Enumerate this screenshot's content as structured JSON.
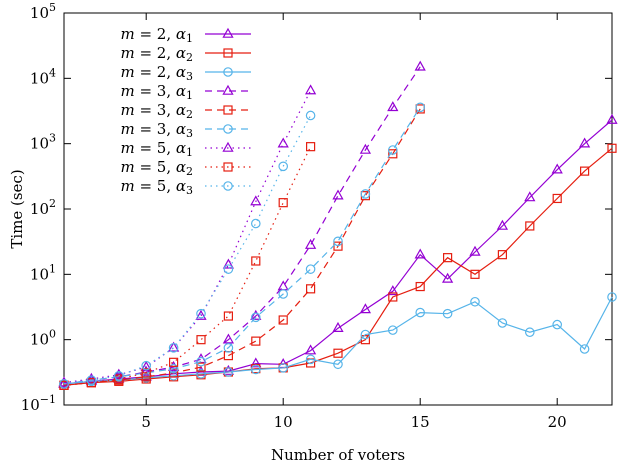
{
  "chart_data": {
    "type": "line",
    "xlabel": "Number of voters",
    "ylabel": "Time (sec)",
    "xlim": [
      2,
      22
    ],
    "ylim": [
      0.1,
      100000
    ],
    "yscale": "log",
    "grid": false,
    "legend_position": "top-left",
    "x_ticks": [
      {
        "value": 5,
        "label": "5"
      },
      {
        "value": 10,
        "label": "10"
      },
      {
        "value": 15,
        "label": "15"
      },
      {
        "value": 20,
        "label": "20"
      }
    ],
    "y_ticks": [
      {
        "value": 0.1,
        "base": "10",
        "exp": "−1"
      },
      {
        "value": 1,
        "base": "10",
        "exp": "0"
      },
      {
        "value": 10,
        "base": "10",
        "exp": "1"
      },
      {
        "value": 100,
        "base": "10",
        "exp": "2"
      },
      {
        "value": 1000,
        "base": "10",
        "exp": "3"
      },
      {
        "value": 10000,
        "base": "10",
        "exp": "4"
      },
      {
        "value": 100000,
        "base": "10",
        "exp": "5"
      }
    ],
    "series": [
      {
        "name": "m = 2, α1",
        "m": "2",
        "alpha_sub": "1",
        "color": "#9400d3",
        "marker": "triangle",
        "dash": "solid",
        "x": [
          2,
          3,
          4,
          5,
          6,
          7,
          8,
          9,
          10,
          11,
          12,
          13,
          14,
          15,
          16,
          17,
          18,
          19,
          20,
          21,
          22
        ],
        "y": [
          0.21,
          0.23,
          0.25,
          0.27,
          0.3,
          0.32,
          0.33,
          0.43,
          0.42,
          0.68,
          1.5,
          2.9,
          5.5,
          20,
          8.5,
          22,
          55,
          150,
          400,
          1000,
          2300
        ]
      },
      {
        "name": "m = 2, α2",
        "m": "2",
        "alpha_sub": "2",
        "color": "#e51e10",
        "marker": "square",
        "dash": "solid",
        "x": [
          2,
          3,
          4,
          5,
          6,
          7,
          8,
          9,
          10,
          11,
          12,
          13,
          14,
          15,
          16,
          17,
          18,
          19,
          20,
          21,
          22
        ],
        "y": [
          0.2,
          0.22,
          0.23,
          0.25,
          0.27,
          0.29,
          0.32,
          0.36,
          0.37,
          0.44,
          0.62,
          1.0,
          4.5,
          6.5,
          18,
          10,
          20,
          55,
          145,
          380,
          850
        ]
      },
      {
        "name": "m = 2, α3",
        "m": "2",
        "alpha_sub": "3",
        "color": "#56b4e9",
        "marker": "circle",
        "dash": "solid",
        "x": [
          2,
          3,
          4,
          5,
          6,
          7,
          8,
          9,
          10,
          11,
          12,
          13,
          14,
          15,
          16,
          17,
          18,
          19,
          20,
          21,
          22
        ],
        "y": [
          0.21,
          0.23,
          0.24,
          0.26,
          0.28,
          0.3,
          0.32,
          0.35,
          0.37,
          0.5,
          0.42,
          1.2,
          1.4,
          2.6,
          2.5,
          3.8,
          1.8,
          1.3,
          1.7,
          0.72,
          4.5
        ]
      },
      {
        "name": "m = 3, α1",
        "m": "3",
        "alpha_sub": "1",
        "color": "#9400d3",
        "marker": "triangle",
        "dash": "dashed",
        "x": [
          2,
          3,
          4,
          5,
          6,
          7,
          8,
          9,
          10,
          11,
          12,
          13,
          14,
          15
        ],
        "y": [
          0.21,
          0.24,
          0.27,
          0.32,
          0.38,
          0.5,
          1.0,
          2.3,
          6.5,
          28,
          160,
          800,
          3600,
          15000
        ]
      },
      {
        "name": "m = 3, α2",
        "m": "3",
        "alpha_sub": "2",
        "color": "#e51e10",
        "marker": "square",
        "dash": "dashed",
        "x": [
          2,
          3,
          4,
          5,
          6,
          7,
          8,
          9,
          10,
          11,
          12,
          13,
          14,
          15
        ],
        "y": [
          0.2,
          0.22,
          0.24,
          0.27,
          0.31,
          0.38,
          0.57,
          0.95,
          2.0,
          6.0,
          27,
          160,
          700,
          3400
        ]
      },
      {
        "name": "m = 3, α3",
        "m": "3",
        "alpha_sub": "3",
        "color": "#56b4e9",
        "marker": "circle",
        "dash": "dashed",
        "x": [
          2,
          3,
          4,
          5,
          6,
          7,
          8,
          9,
          10,
          11,
          12,
          13,
          14,
          15
        ],
        "y": [
          0.21,
          0.24,
          0.27,
          0.31,
          0.36,
          0.46,
          0.75,
          2.2,
          5.0,
          12,
          32,
          170,
          800,
          3600
        ]
      },
      {
        "name": "m = 5, α1",
        "m": "5",
        "alpha_sub": "1",
        "color": "#9400d3",
        "marker": "triangle",
        "dash": "dotted",
        "x": [
          2,
          3,
          4,
          5,
          6,
          7,
          8,
          9,
          10,
          11
        ],
        "y": [
          0.22,
          0.25,
          0.29,
          0.38,
          0.75,
          2.3,
          14,
          130,
          1000,
          6500
        ]
      },
      {
        "name": "m = 5, α2",
        "m": "5",
        "alpha_sub": "2",
        "color": "#e51e10",
        "marker": "square",
        "dash": "dotted",
        "x": [
          2,
          3,
          4,
          5,
          6,
          7,
          8,
          9,
          10,
          11
        ],
        "y": [
          0.2,
          0.22,
          0.25,
          0.31,
          0.45,
          1.0,
          2.3,
          16,
          125,
          900
        ]
      },
      {
        "name": "m = 5, α3",
        "m": "5",
        "alpha_sub": "3",
        "color": "#56b4e9",
        "marker": "circle",
        "dash": "dotted",
        "x": [
          2,
          3,
          4,
          5,
          6,
          7,
          8,
          9,
          10,
          11
        ],
        "y": [
          0.21,
          0.24,
          0.28,
          0.4,
          0.75,
          2.5,
          12,
          60,
          450,
          2700
        ]
      }
    ]
  }
}
